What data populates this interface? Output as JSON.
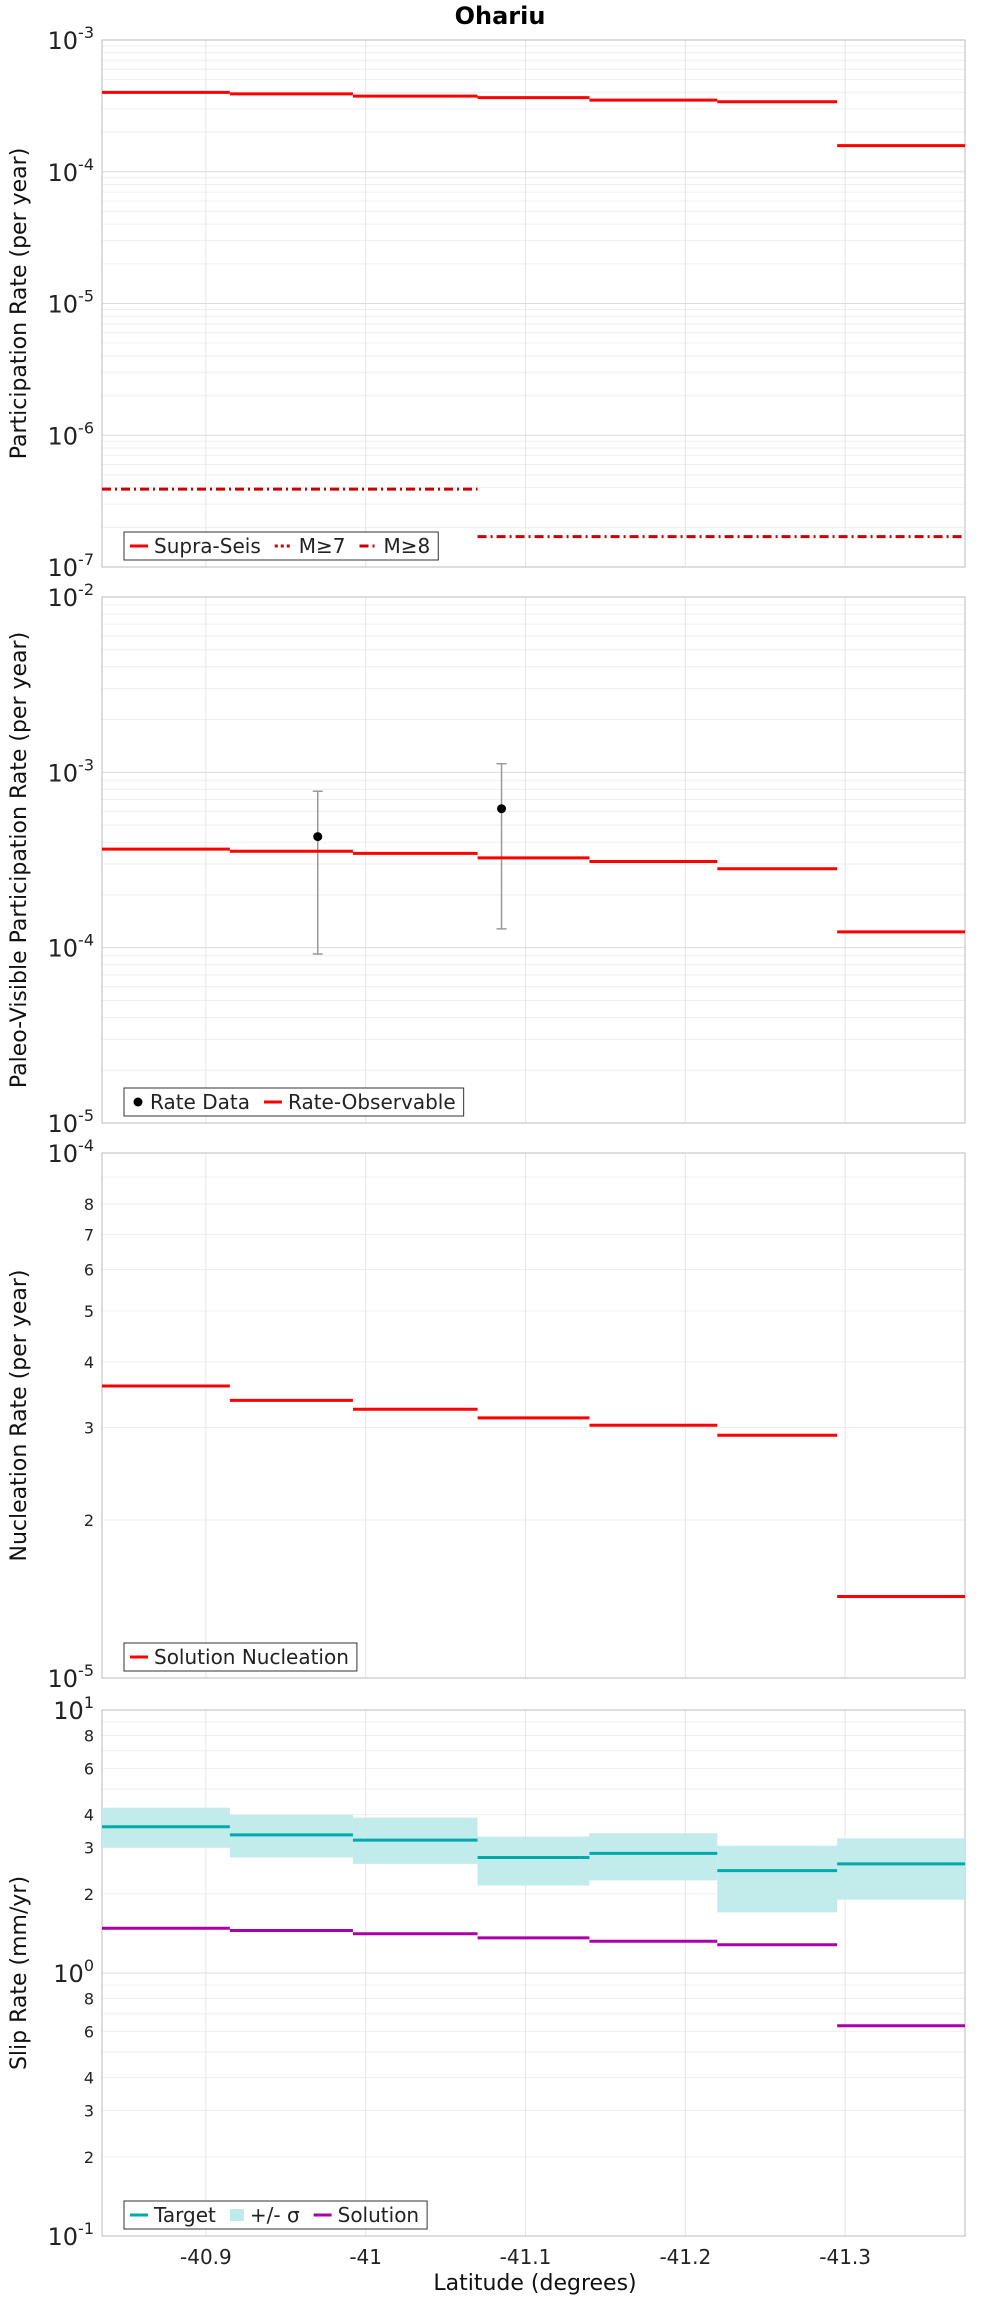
{
  "title": "Ohariu",
  "xlabel": "Latitude (degrees)",
  "x_ticks": [
    "-40.9",
    "-41",
    "-41.1",
    "-41.2",
    "-41.3"
  ],
  "chart_data": [
    {
      "type": "line",
      "ylabel": "Participation Rate (per year)",
      "yscale": "log",
      "ylim": [
        1e-07,
        0.001
      ],
      "xlim": [
        -40.835,
        -41.375
      ],
      "legend_position": "bottom-left",
      "series": [
        {
          "name": "Supra-Seis",
          "style": "solid",
          "color": "#ff0000",
          "steps": [
            [
              -40.835,
              -40.915,
              0.0004
            ],
            [
              -40.915,
              -40.992,
              0.00039
            ],
            [
              -40.992,
              -41.07,
              0.000375
            ],
            [
              -41.07,
              -41.14,
              0.000365
            ],
            [
              -41.14,
              -41.22,
              0.00035
            ],
            [
              -41.22,
              -41.295,
              0.00034
            ],
            [
              -41.295,
              -41.375,
              0.000158
            ]
          ]
        },
        {
          "name": "M≥7",
          "style": "dotted",
          "color": "#cc0000",
          "steps": []
        },
        {
          "name": "M≥8",
          "style": "dashdot",
          "color": "#cc0000",
          "steps": [
            [
              -40.835,
              -41.07,
              3.9e-07
            ],
            [
              -41.07,
              -41.375,
              1.7e-07
            ]
          ]
        }
      ]
    },
    {
      "type": "line",
      "ylabel": "Paleo-Visible Participation Rate (per year)",
      "yscale": "log",
      "ylim": [
        1e-05,
        0.01
      ],
      "xlim": [
        -40.835,
        -41.375
      ],
      "legend_position": "bottom-left",
      "series": [
        {
          "name": "Rate Data",
          "style": "points",
          "color": "#000000",
          "points": [
            [
              -40.97,
              0.00043,
              9.2e-05,
              0.00078
            ],
            [
              -41.085,
              0.00062,
              0.000128,
              0.00112
            ]
          ]
        },
        {
          "name": "Rate-Observable",
          "style": "solid",
          "color": "#ff0000",
          "steps": [
            [
              -40.835,
              -40.915,
              0.000365
            ],
            [
              -40.915,
              -40.992,
              0.000355
            ],
            [
              -40.992,
              -41.07,
              0.000345
            ],
            [
              -41.07,
              -41.14,
              0.000325
            ],
            [
              -41.14,
              -41.22,
              0.00031
            ],
            [
              -41.22,
              -41.295,
              0.000282
            ],
            [
              -41.295,
              -41.375,
              0.000123
            ]
          ]
        }
      ]
    },
    {
      "type": "line",
      "ylabel": "Nucleation Rate (per year)",
      "yscale": "log",
      "ylim": [
        1e-05,
        0.0001
      ],
      "xlim": [
        -40.835,
        -41.375
      ],
      "y_minor_labels": [
        "2",
        "3",
        "4",
        "5",
        "6",
        "7",
        "8"
      ],
      "legend_position": "bottom-left",
      "series": [
        {
          "name": "Solution Nucleation",
          "style": "solid",
          "color": "#ff0000",
          "steps": [
            [
              -40.835,
              -40.915,
              3.6e-05
            ],
            [
              -40.915,
              -40.992,
              3.38e-05
            ],
            [
              -40.992,
              -41.07,
              3.25e-05
            ],
            [
              -41.07,
              -41.14,
              3.13e-05
            ],
            [
              -41.14,
              -41.22,
              3.03e-05
            ],
            [
              -41.22,
              -41.295,
              2.9e-05
            ],
            [
              -41.295,
              -41.375,
              1.43e-05
            ]
          ]
        }
      ]
    },
    {
      "type": "line",
      "ylabel": "Slip Rate (mm/yr)",
      "yscale": "log",
      "ylim": [
        0.1,
        10
      ],
      "xlim": [
        -40.835,
        -41.375
      ],
      "y_minor_labels": [
        "2",
        "3",
        "4",
        "6",
        "8"
      ],
      "legend_position": "bottom-left",
      "series": [
        {
          "name": "Target",
          "style": "solid",
          "color": "#00aaaa",
          "steps": [
            [
              -40.835,
              -40.915,
              3.6
            ],
            [
              -40.915,
              -40.992,
              3.35
            ],
            [
              -40.992,
              -41.07,
              3.2
            ],
            [
              -41.07,
              -41.14,
              2.75
            ],
            [
              -41.14,
              -41.22,
              2.85
            ],
            [
              -41.22,
              -41.295,
              2.45
            ],
            [
              -41.295,
              -41.375,
              2.6
            ]
          ]
        },
        {
          "name": "+/- σ",
          "style": "band",
          "color": "#bfeaea",
          "bands": [
            [
              -40.835,
              -40.915,
              3.0,
              4.25
            ],
            [
              -40.915,
              -40.992,
              2.75,
              4.0
            ],
            [
              -40.992,
              -41.07,
              2.6,
              3.9
            ],
            [
              -41.07,
              -41.14,
              2.15,
              3.3
            ],
            [
              -41.14,
              -41.22,
              2.25,
              3.4
            ],
            [
              -41.22,
              -41.295,
              1.7,
              3.05
            ],
            [
              -41.295,
              -41.375,
              1.9,
              3.25
            ]
          ]
        },
        {
          "name": "Solution",
          "style": "solid",
          "color": "#aa00aa",
          "steps": [
            [
              -40.835,
              -40.915,
              1.48
            ],
            [
              -40.915,
              -40.992,
              1.45
            ],
            [
              -40.992,
              -41.07,
              1.41
            ],
            [
              -41.07,
              -41.14,
              1.36
            ],
            [
              -41.14,
              -41.22,
              1.32
            ],
            [
              -41.22,
              -41.295,
              1.28
            ],
            [
              -41.295,
              -41.375,
              0.63
            ]
          ]
        }
      ]
    }
  ]
}
